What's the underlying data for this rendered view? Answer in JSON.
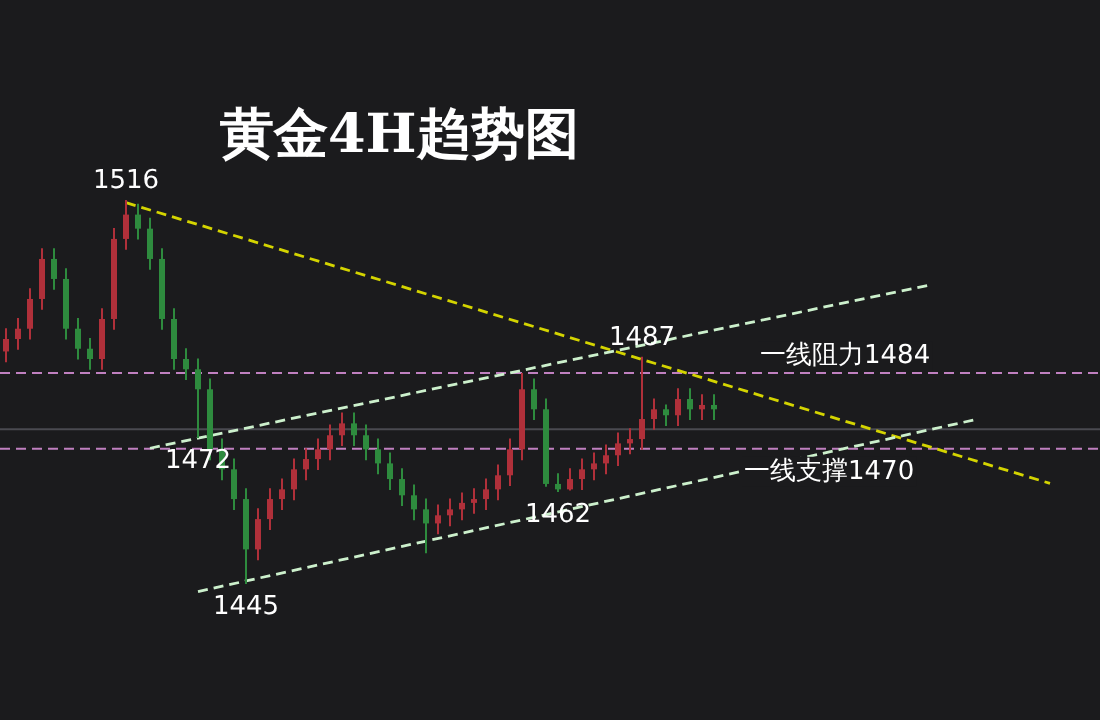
{
  "chart_data": {
    "type": "candlestick",
    "title": "黄金4H趋势图",
    "categories": [
      null,
      null,
      null,
      null,
      null,
      null,
      null,
      null,
      null,
      null,
      null,
      null,
      null,
      null,
      null,
      null,
      null,
      null,
      null,
      null,
      null,
      null,
      null,
      null,
      null,
      null,
      null,
      null,
      null,
      null,
      null,
      null,
      null,
      null,
      null,
      null,
      null,
      null,
      null,
      null,
      null,
      null,
      null,
      null,
      null,
      null,
      null,
      null,
      null,
      null,
      null,
      null,
      null,
      null,
      null,
      null,
      null,
      null,
      null,
      null,
      null,
      null,
      null,
      null,
      null,
      null,
      null,
      null,
      null,
      null,
      null,
      null,
      null,
      null,
      null,
      null,
      null,
      null,
      null,
      null,
      null,
      null,
      null,
      null,
      null,
      null,
      null,
      null,
      null,
      null
    ],
    "ohlc": [
      [
        1488.0,
        1492.3,
        1486.0,
        1490.3
      ],
      [
        1490.3,
        1494.2,
        1488.3,
        1492.2
      ],
      [
        1492.2,
        1499.7,
        1490.2,
        1497.7
      ],
      [
        1497.7,
        1507.1,
        1495.7,
        1505.1
      ],
      [
        1505.1,
        1507.1,
        1499.4,
        1501.4
      ],
      [
        1501.4,
        1503.4,
        1490.2,
        1492.2
      ],
      [
        1492.2,
        1494.2,
        1486.5,
        1488.5
      ],
      [
        1488.5,
        1490.5,
        1484.6,
        1486.6
      ],
      [
        1486.6,
        1496.0,
        1484.6,
        1494.0
      ],
      [
        1494.0,
        1510.8,
        1492.0,
        1508.8
      ],
      [
        1508.8,
        1516.0,
        1506.8,
        1513.3
      ],
      [
        1513.3,
        1515.3,
        1508.7,
        1510.7
      ],
      [
        1510.7,
        1512.7,
        1503.1,
        1505.1
      ],
      [
        1505.1,
        1507.1,
        1492.0,
        1494.0
      ],
      [
        1494.0,
        1496.0,
        1484.6,
        1486.6
      ],
      [
        1486.6,
        1488.6,
        1482.7,
        1484.7
      ],
      [
        1484.7,
        1486.7,
        1472.0,
        1481.0
      ],
      [
        1481.0,
        1483.0,
        1467.9,
        1469.9
      ],
      [
        1469.9,
        1471.9,
        1464.2,
        1466.2
      ],
      [
        1466.2,
        1468.2,
        1458.7,
        1460.7
      ],
      [
        1460.7,
        1462.7,
        1445.0,
        1451.4
      ],
      [
        1451.4,
        1459.0,
        1449.4,
        1457.0
      ],
      [
        1457.0,
        1462.7,
        1455.0,
        1460.7
      ],
      [
        1460.7,
        1464.5,
        1458.7,
        1462.5
      ],
      [
        1462.5,
        1468.2,
        1460.5,
        1466.2
      ],
      [
        1466.2,
        1470.1,
        1464.2,
        1468.1
      ],
      [
        1468.1,
        1471.9,
        1466.1,
        1469.9
      ],
      [
        1469.9,
        1474.5,
        1467.9,
        1472.5
      ],
      [
        1472.5,
        1476.7,
        1470.5,
        1474.7
      ],
      [
        1474.7,
        1476.7,
        1470.5,
        1472.5
      ],
      [
        1472.5,
        1474.5,
        1467.9,
        1469.9
      ],
      [
        1469.9,
        1471.9,
        1465.3,
        1467.3
      ],
      [
        1467.3,
        1469.3,
        1462.4,
        1464.4
      ],
      [
        1464.4,
        1466.4,
        1459.4,
        1461.4
      ],
      [
        1461.4,
        1463.4,
        1456.8,
        1458.8
      ],
      [
        1458.8,
        1460.8,
        1450.7,
        1456.2
      ],
      [
        1456.2,
        1459.7,
        1454.2,
        1457.7
      ],
      [
        1457.7,
        1460.8,
        1455.7,
        1458.8
      ],
      [
        1458.8,
        1461.9,
        1456.8,
        1460.0
      ],
      [
        1460.0,
        1462.7,
        1458.0,
        1460.7
      ],
      [
        1460.7,
        1464.5,
        1458.7,
        1462.5
      ],
      [
        1462.5,
        1467.1,
        1460.5,
        1465.1
      ],
      [
        1465.1,
        1471.9,
        1463.1,
        1469.9
      ],
      [
        1469.9,
        1484.0,
        1467.9,
        1481.0
      ],
      [
        1481.0,
        1483.0,
        1475.3,
        1477.3
      ],
      [
        1477.3,
        1479.3,
        1463.0,
        1463.5
      ],
      [
        1463.5,
        1465.5,
        1462.0,
        1462.5
      ],
      [
        1462.5,
        1466.4,
        1462.3,
        1464.4
      ],
      [
        1464.4,
        1468.2,
        1462.4,
        1466.2
      ],
      [
        1466.2,
        1469.3,
        1464.2,
        1467.3
      ],
      [
        1467.3,
        1470.8,
        1465.3,
        1468.8
      ],
      [
        1468.8,
        1473.0,
        1466.8,
        1471.0
      ],
      [
        1471.0,
        1473.8,
        1469.0,
        1471.8
      ],
      [
        1471.8,
        1487.0,
        1469.8,
        1475.5
      ],
      [
        1475.5,
        1479.3,
        1473.5,
        1477.3
      ],
      [
        1477.3,
        1478.2,
        1474.2,
        1476.2
      ],
      [
        1476.2,
        1481.2,
        1474.2,
        1479.2
      ],
      [
        1479.2,
        1481.2,
        1475.3,
        1477.3
      ],
      [
        1477.3,
        1480.1,
        1475.3,
        1478.1
      ],
      [
        1478.1,
        1480.1,
        1475.3,
        1477.3
      ],
      null,
      null,
      null,
      null,
      null,
      null,
      null,
      null,
      null,
      null,
      null,
      null,
      null,
      null,
      null,
      null,
      null,
      null,
      null,
      null,
      null,
      null,
      null,
      null,
      null,
      null,
      null,
      null,
      null,
      null
    ],
    "series": [
      {
        "type": "line",
        "values": [
          null,
          null,
          null,
          null,
          null,
          null,
          null,
          null,
          null,
          null,
          1515.5,
          null,
          null,
          null,
          null,
          null,
          null,
          null,
          null,
          null,
          null,
          null,
          null,
          null,
          null,
          null,
          null,
          null,
          null,
          null,
          null,
          null,
          null,
          null,
          null,
          null,
          null,
          null,
          null,
          null,
          null,
          null,
          null,
          null,
          null,
          null,
          null,
          null,
          null,
          null,
          null,
          null,
          null,
          null,
          null,
          null,
          null,
          null,
          null,
          null,
          null,
          null,
          null,
          null,
          null,
          null,
          null,
          null,
          null,
          null,
          null,
          null,
          null,
          null,
          null,
          null,
          null,
          null,
          null,
          null,
          null,
          null,
          null,
          null,
          null,
          null,
          null,
          1463.6,
          null,
          null
        ],
        "color": "#d4d400",
        "line_style": "dashed"
      },
      {
        "type": "line",
        "values": [
          null,
          null,
          null,
          null,
          null,
          null,
          null,
          null,
          null,
          null,
          null,
          null,
          1470.1,
          null,
          null,
          null,
          null,
          null,
          null,
          null,
          null,
          null,
          null,
          null,
          null,
          null,
          null,
          null,
          null,
          null,
          null,
          null,
          null,
          null,
          null,
          null,
          null,
          null,
          null,
          null,
          null,
          null,
          null,
          null,
          null,
          null,
          null,
          null,
          null,
          null,
          null,
          null,
          null,
          null,
          null,
          null,
          null,
          null,
          null,
          null,
          null,
          null,
          null,
          null,
          null,
          null,
          null,
          null,
          null,
          null,
          null,
          null,
          null,
          null,
          null,
          null,
          null,
          1500.3,
          null,
          null,
          null,
          null,
          null,
          null,
          null,
          null,
          null,
          null,
          null,
          null
        ],
        "color": "#ccf0cc",
        "line_style": "dashed"
      },
      {
        "type": "line",
        "values": [
          null,
          null,
          null,
          null,
          null,
          null,
          null,
          null,
          null,
          null,
          null,
          null,
          null,
          null,
          null,
          null,
          1443.6,
          null,
          null,
          null,
          null,
          null,
          null,
          null,
          null,
          null,
          null,
          null,
          null,
          null,
          null,
          null,
          null,
          null,
          null,
          null,
          null,
          null,
          null,
          null,
          null,
          null,
          null,
          null,
          null,
          null,
          null,
          null,
          null,
          null,
          null,
          null,
          null,
          null,
          null,
          null,
          null,
          null,
          null,
          null,
          null,
          null,
          null,
          null,
          null,
          null,
          null,
          null,
          null,
          null,
          null,
          null,
          null,
          null,
          null,
          null,
          null,
          null,
          null,
          null,
          null,
          1475.5,
          null,
          null,
          null,
          null,
          null,
          null,
          null,
          null
        ],
        "color": "#ccf0cc",
        "line_style": "dashed"
      }
    ],
    "ref_lines": [
      {
        "axis": "y",
        "value": 1484,
        "label": "一线阻力1484",
        "color": "#c080c0",
        "line_style": "dashed"
      },
      {
        "axis": "y",
        "value": 1470,
        "label": "一线支撑1470",
        "color": "#c080c0",
        "line_style": "dashed"
      },
      {
        "axis": "y",
        "value": 1473.6,
        "color": "#4a4a50",
        "line_style": "solid"
      }
    ],
    "annotations": [
      {
        "text": "1516",
        "y": 1516
      },
      {
        "text": "1487",
        "y": 1487
      },
      {
        "text": "1472",
        "y": 1472
      },
      {
        "text": "1462",
        "y": 1462
      },
      {
        "text": "1445",
        "y": 1445
      }
    ]
  }
}
